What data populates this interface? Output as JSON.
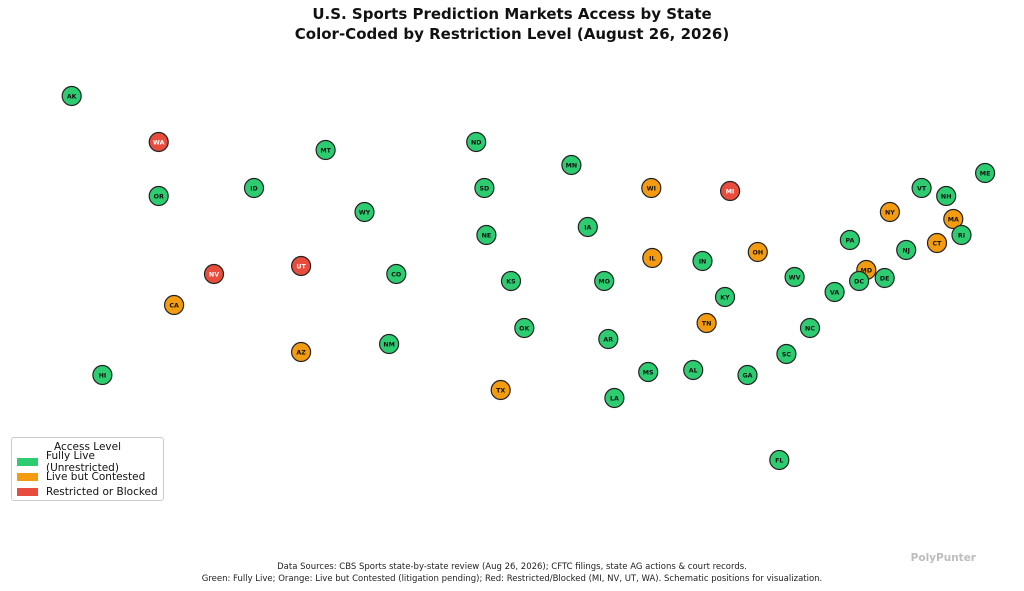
{
  "title": "U.S. Sports Prediction Markets Access by State",
  "subtitle": "Color-Coded by Restriction Level (August 26, 2026)",
  "legend": {
    "title": "Access Level",
    "placement": "lower-left",
    "items": [
      {
        "label": "Fully Live (Unrestricted)",
        "color": "#2ecc71"
      },
      {
        "label": "Live but Contested",
        "color": "#f39c12"
      },
      {
        "label": "Restricted or Blocked",
        "color": "#e74c3c"
      }
    ]
  },
  "footer": {
    "line1": "Data Sources: CBS Sports state-by-state review (Aug 26, 2026); CFTC filings, state AG actions & court records.",
    "line2": "Green: Fully Live; Orange: Live but Contested (litigation pending); Red: Restricted/Blocked (MI, NV, UT, WA). Schematic positions for visualization."
  },
  "brand": "PolyPunter",
  "chart_data": {
    "type": "scatter",
    "title": "U.S. Sports Prediction Markets Access by State",
    "subtitle": "Color-Coded by Restriction Level (August 26, 2026)",
    "grid": false,
    "axes_visible": false,
    "xlim": [
      0,
      1000
    ],
    "ylim": [
      0,
      600
    ],
    "colors": {
      "live": "#2ecc71",
      "contested": "#f39c12",
      "restricted": "#e74c3c"
    },
    "points": [
      {
        "state": "AK",
        "x": 70,
        "y": 96,
        "status": "live"
      },
      {
        "state": "WA",
        "x": 155,
        "y": 142,
        "status": "restricted"
      },
      {
        "state": "OR",
        "x": 155,
        "y": 196,
        "status": "live"
      },
      {
        "state": "MT",
        "x": 318,
        "y": 150,
        "status": "live"
      },
      {
        "state": "ID",
        "x": 248,
        "y": 188,
        "status": "live"
      },
      {
        "state": "WY",
        "x": 356,
        "y": 212,
        "status": "live"
      },
      {
        "state": "ND",
        "x": 465,
        "y": 142,
        "status": "live"
      },
      {
        "state": "MN",
        "x": 558,
        "y": 165,
        "status": "live"
      },
      {
        "state": "SD",
        "x": 473,
        "y": 188,
        "status": "live"
      },
      {
        "state": "WI",
        "x": 636,
        "y": 188,
        "status": "contested"
      },
      {
        "state": "MI",
        "x": 713,
        "y": 191,
        "status": "restricted"
      },
      {
        "state": "ME",
        "x": 962,
        "y": 173,
        "status": "live"
      },
      {
        "state": "VT",
        "x": 900,
        "y": 188,
        "status": "live"
      },
      {
        "state": "NH",
        "x": 924,
        "y": 196,
        "status": "live"
      },
      {
        "state": "NY",
        "x": 869,
        "y": 212,
        "status": "contested"
      },
      {
        "state": "MA",
        "x": 931,
        "y": 219,
        "status": "contested"
      },
      {
        "state": "IA",
        "x": 574,
        "y": 227,
        "status": "live"
      },
      {
        "state": "NE",
        "x": 475,
        "y": 235,
        "status": "live"
      },
      {
        "state": "RI",
        "x": 939,
        "y": 235,
        "status": "live"
      },
      {
        "state": "PA",
        "x": 830,
        "y": 240,
        "status": "live"
      },
      {
        "state": "CT",
        "x": 915,
        "y": 243,
        "status": "contested"
      },
      {
        "state": "NJ",
        "x": 885,
        "y": 250,
        "status": "live"
      },
      {
        "state": "OH",
        "x": 740,
        "y": 252,
        "status": "contested"
      },
      {
        "state": "IL",
        "x": 637,
        "y": 258,
        "status": "contested"
      },
      {
        "state": "IN",
        "x": 686,
        "y": 261,
        "status": "live"
      },
      {
        "state": "UT",
        "x": 294,
        "y": 266,
        "status": "restricted"
      },
      {
        "state": "MD",
        "x": 846,
        "y": 270,
        "status": "contested"
      },
      {
        "state": "NV",
        "x": 209,
        "y": 274,
        "status": "restricted"
      },
      {
        "state": "CO",
        "x": 387,
        "y": 274,
        "status": "live"
      },
      {
        "state": "WV",
        "x": 776,
        "y": 277,
        "status": "live"
      },
      {
        "state": "DE",
        "x": 864,
        "y": 278,
        "status": "live"
      },
      {
        "state": "DC",
        "x": 839,
        "y": 281,
        "status": "live"
      },
      {
        "state": "KS",
        "x": 499,
        "y": 281,
        "status": "live"
      },
      {
        "state": "MO",
        "x": 590,
        "y": 281,
        "status": "live"
      },
      {
        "state": "VA",
        "x": 815,
        "y": 292,
        "status": "live"
      },
      {
        "state": "KY",
        "x": 708,
        "y": 297,
        "status": "live"
      },
      {
        "state": "CA",
        "x": 170,
        "y": 305,
        "status": "contested"
      },
      {
        "state": "TN",
        "x": 690,
        "y": 323,
        "status": "contested"
      },
      {
        "state": "OK",
        "x": 512,
        "y": 328,
        "status": "live"
      },
      {
        "state": "NC",
        "x": 791,
        "y": 328,
        "status": "live"
      },
      {
        "state": "AR",
        "x": 594,
        "y": 339,
        "status": "live"
      },
      {
        "state": "NM",
        "x": 380,
        "y": 344,
        "status": "live"
      },
      {
        "state": "AZ",
        "x": 294,
        "y": 352,
        "status": "contested"
      },
      {
        "state": "SC",
        "x": 768,
        "y": 354,
        "status": "live"
      },
      {
        "state": "AL",
        "x": 677,
        "y": 370,
        "status": "live"
      },
      {
        "state": "MS",
        "x": 633,
        "y": 372,
        "status": "live"
      },
      {
        "state": "GA",
        "x": 730,
        "y": 375,
        "status": "live"
      },
      {
        "state": "HI",
        "x": 100,
        "y": 375,
        "status": "live"
      },
      {
        "state": "TX",
        "x": 489,
        "y": 390,
        "status": "contested"
      },
      {
        "state": "LA",
        "x": 600,
        "y": 398,
        "status": "live"
      },
      {
        "state": "FL",
        "x": 761,
        "y": 460,
        "status": "live"
      }
    ]
  }
}
